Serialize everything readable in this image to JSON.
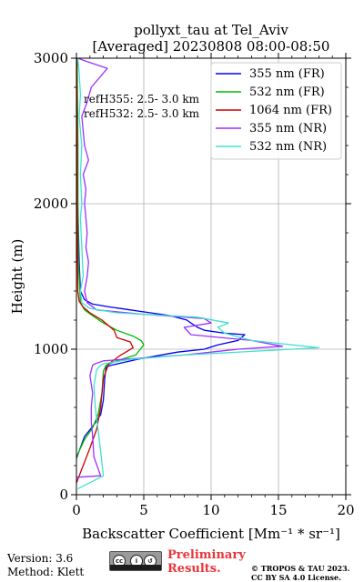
{
  "chart_data": {
    "type": "line",
    "title": "pollyxt_tau at Tel_Aviv",
    "subtitle": "[Averaged] 20230808 08:00-08:50",
    "xlabel": "Backscatter Coefficient [Mm⁻¹ * sr⁻¹]",
    "ylabel": "Height (m)",
    "xlim": [
      0,
      20
    ],
    "ylim": [
      0,
      3000
    ],
    "xticks": [
      "0",
      "5",
      "10",
      "15",
      "20"
    ],
    "yticks": [
      "0",
      "1000",
      "2000",
      "3000"
    ],
    "grid": true,
    "legend_position": "top-right",
    "annotations": [
      "refH355:  2.5- 3.0 km",
      "refH532:  2.5- 3.0 km"
    ],
    "series": [
      {
        "name": "355 nm (FR)",
        "color": "#0000ee",
        "x": [
          0,
          0.6,
          1.3,
          1.8,
          2.0,
          2.1,
          2.2,
          2.6,
          4.5,
          7.5,
          9.5,
          10.5,
          12.0,
          12.5,
          11.0,
          9.5,
          9.0,
          8.5,
          8.2,
          7.0,
          5.5,
          4.0,
          2.5,
          1.2,
          0.6,
          0.3,
          0.2,
          0.1,
          0.1,
          0.05,
          0.05
        ],
        "y": [
          250,
          400,
          480,
          550,
          650,
          800,
          880,
          890,
          930,
          980,
          1000,
          1030,
          1060,
          1100,
          1110,
          1130,
          1150,
          1180,
          1200,
          1230,
          1250,
          1270,
          1290,
          1310,
          1340,
          1400,
          1600,
          2000,
          2400,
          2800,
          3000
        ]
      },
      {
        "name": "532 nm (FR)",
        "color": "#00bb00",
        "x": [
          0,
          0.6,
          1.2,
          1.6,
          1.9,
          2.0,
          2.2,
          3.0,
          4.4,
          5.0,
          4.8,
          4.2,
          3.0,
          2.0,
          1.2,
          0.6,
          0.3,
          0.15,
          0.1,
          0.1,
          0.05
        ],
        "y": [
          260,
          380,
          460,
          550,
          700,
          850,
          890,
          920,
          960,
          1030,
          1060,
          1090,
          1130,
          1180,
          1230,
          1270,
          1320,
          1600,
          2000,
          2500,
          3000
        ]
      },
      {
        "name": "1064 nm (FR)",
        "color": "#cc0000",
        "x": [
          0,
          0.5,
          1.0,
          1.5,
          1.8,
          2.0,
          2.4,
          3.3,
          4.2,
          4.0,
          3.0,
          2.8,
          1.9,
          1.0,
          0.5,
          0.2,
          0.1,
          0.05,
          0.05,
          0.02
        ],
        "y": [
          80,
          200,
          320,
          450,
          600,
          800,
          900,
          960,
          1010,
          1050,
          1080,
          1130,
          1200,
          1250,
          1290,
          1330,
          1400,
          2000,
          2500,
          3000
        ]
      },
      {
        "name": "355 nm (NR)",
        "color": "#9b30ff",
        "x": [
          0,
          1.8,
          1.3,
          1.2,
          1.1,
          1.1,
          1.2,
          1.0,
          1.2,
          1.4,
          2.0,
          8.0,
          12.0,
          15.3,
          13.0,
          8.5,
          8.0,
          10.0,
          9.5,
          5.0,
          1.5,
          0.8,
          0.6,
          0.8,
          0.9,
          0.7,
          0.8,
          0.7,
          0.6,
          0.7,
          0.5,
          0.9,
          0.6,
          0.5,
          0.4,
          0.8,
          1.1,
          2.3,
          0.7,
          0.1
        ],
        "y": [
          120,
          130,
          260,
          400,
          500,
          600,
          700,
          820,
          890,
          900,
          920,
          960,
          1000,
          1020,
          1060,
          1100,
          1150,
          1180,
          1210,
          1240,
          1270,
          1320,
          1400,
          1500,
          1600,
          1700,
          1800,
          1900,
          2000,
          2100,
          2200,
          2300,
          2400,
          2500,
          2600,
          2700,
          2800,
          2930,
          2980,
          3000
        ]
      },
      {
        "name": "532 nm (NR)",
        "color": "#40e0d0",
        "x": [
          0.1,
          2.0,
          1.8,
          1.6,
          1.4,
          1.3,
          1.5,
          1.8,
          2.0,
          4.0,
          8.0,
          14.0,
          18.0,
          13.0,
          11.0,
          10.5,
          11.3,
          9.0,
          3.0,
          1.0,
          0.4,
          0.3,
          0.5,
          0.4,
          0.3,
          0.4,
          0.3,
          0.4,
          0.3,
          0.2,
          0.3,
          0.2,
          0.1
        ],
        "y": [
          40,
          130,
          300,
          450,
          600,
          750,
          860,
          890,
          900,
          930,
          960,
          990,
          1010,
          1060,
          1110,
          1150,
          1180,
          1220,
          1250,
          1280,
          1320,
          1400,
          1500,
          1700,
          1900,
          2000,
          2200,
          2400,
          2500,
          2600,
          2750,
          2900,
          3000
        ]
      }
    ]
  },
  "footer": {
    "version": "Version: 3.6",
    "method": "Method: Klett",
    "preliminary_line1": "Preliminary",
    "preliminary_line2": "Results.",
    "copyright_line1": "© TROPOS & TAU 2023.",
    "copyright_line2": "CC BY SA 4.0 License."
  }
}
